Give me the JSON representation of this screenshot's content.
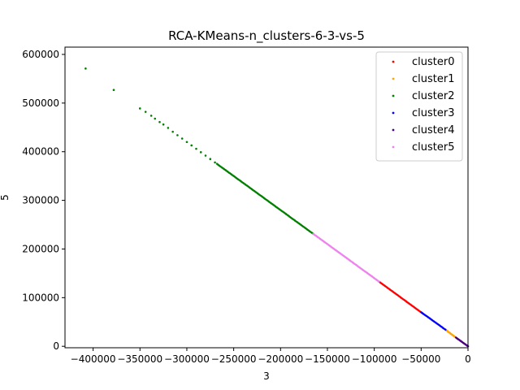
{
  "chart_data": {
    "type": "scatter",
    "title": "RCA-KMeans-n_clusters-6-3-vs-5",
    "xlabel": "3",
    "ylabel": "5",
    "xlim": [
      -430000,
      0
    ],
    "ylim": [
      -3000,
      615000
    ],
    "xticks": [
      -400000,
      -350000,
      -300000,
      -250000,
      -200000,
      -150000,
      -100000,
      -50000,
      0
    ],
    "xtick_labels": [
      "−400000",
      "−350000",
      "−300000",
      "−250000",
      "−200000",
      "−150000",
      "−100000",
      "−50000",
      "0"
    ],
    "yticks": [
      0,
      100000,
      200000,
      300000,
      400000,
      500000,
      600000
    ],
    "ytick_labels": [
      "0",
      "100000",
      "200000",
      "300000",
      "400000",
      "500000",
      "600000"
    ],
    "grid": false,
    "legend_position": "top-right",
    "relationship": "y ≈ -1.4 × x",
    "series": [
      {
        "name": "cluster0",
        "color": "#ff0000",
        "x_range": [
          -95000,
          -48000
        ],
        "y_range": [
          67000,
          133000
        ]
      },
      {
        "name": "cluster1",
        "color": "#ffa500",
        "x_range": [
          -24000,
          -13000
        ],
        "y_range": [
          18000,
          34000
        ]
      },
      {
        "name": "cluster2",
        "color": "#008000",
        "x_range": [
          -408000,
          -165000
        ],
        "y_range": [
          231000,
          571000
        ],
        "points": [
          [
            -408000,
            571000
          ],
          [
            -378000,
            527000
          ],
          [
            -350000,
            489000
          ],
          [
            -344000,
            482000
          ],
          [
            -338000,
            474000
          ],
          [
            -334000,
            468000
          ],
          [
            -329000,
            461000
          ],
          [
            -325000,
            456000
          ],
          [
            -320000,
            449000
          ],
          [
            -315000,
            441000
          ],
          [
            -310000,
            434000
          ],
          [
            -305000,
            427000
          ],
          [
            -300000,
            420000
          ],
          [
            -295000,
            413000
          ],
          [
            -290000,
            406000
          ],
          [
            -285000,
            399000
          ],
          [
            -280000,
            392000
          ],
          [
            -275000,
            385000
          ],
          [
            -270000,
            378000
          ]
        ]
      },
      {
        "name": "cluster3",
        "color": "#0000ff",
        "x_range": [
          -50000,
          -24000
        ],
        "y_range": [
          34000,
          70000
        ]
      },
      {
        "name": "cluster4",
        "color": "#4b0082",
        "x_range": [
          -13000,
          0
        ],
        "y_range": [
          0,
          18000
        ]
      },
      {
        "name": "cluster5",
        "color": "#ee82ee",
        "x_range": [
          -165000,
          -95000
        ],
        "y_range": [
          133000,
          231000
        ]
      }
    ]
  }
}
